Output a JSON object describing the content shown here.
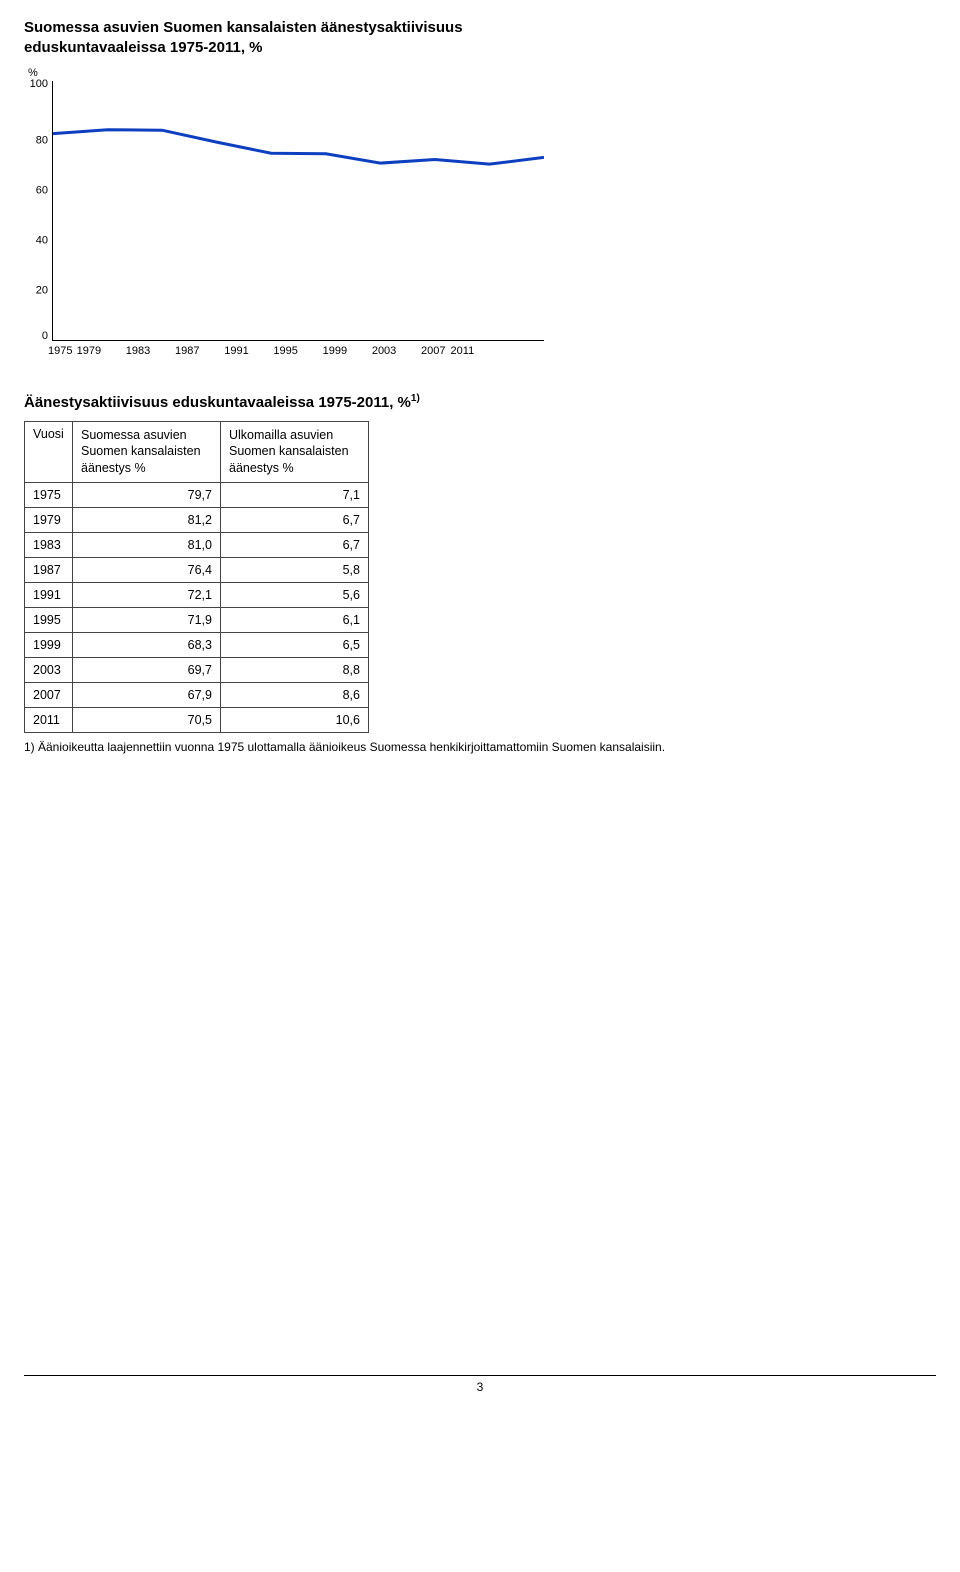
{
  "chart": {
    "title": "Suomessa asuvien Suomen kansalaisten äänestysaktiivisuus eduskuntavaaleissa 1975-2011, %",
    "y_label": "%",
    "y_ticks": [
      100,
      80,
      60,
      40,
      20,
      0
    ],
    "x_ticks": [
      1975,
      1979,
      1983,
      1987,
      1991,
      1995,
      1999,
      2003,
      2007,
      2011
    ],
    "ylim": [
      0,
      100
    ],
    "series_color": "#0d3fbf",
    "line_width": 3,
    "background": "#ffffff",
    "points": [
      {
        "x": 1975,
        "y": 79.7
      },
      {
        "x": 1979,
        "y": 81.2
      },
      {
        "x": 1983,
        "y": 81.0
      },
      {
        "x": 1987,
        "y": 76.4
      },
      {
        "x": 1991,
        "y": 72.1
      },
      {
        "x": 1995,
        "y": 71.9
      },
      {
        "x": 1999,
        "y": 68.3
      },
      {
        "x": 2003,
        "y": 69.7
      },
      {
        "x": 2007,
        "y": 67.9
      },
      {
        "x": 2011,
        "y": 70.5
      }
    ]
  },
  "table": {
    "title_prefix": "Äänestysaktiivisuus eduskuntavaaleissa 1975-2011, %",
    "title_sup": "1)",
    "columns": {
      "c1": "Vuosi",
      "c2": "Suomessa asuvien Suomen kansalaisten äänestys %",
      "c3": "Ulkomailla asuvien Suomen kansalaisten äänestys %"
    },
    "rows": [
      [
        "1975",
        "79,7",
        "7,1"
      ],
      [
        "1979",
        "81,2",
        "6,7"
      ],
      [
        "1983",
        "81,0",
        "6,7"
      ],
      [
        "1987",
        "76,4",
        "5,8"
      ],
      [
        "1991",
        "72,1",
        "5,6"
      ],
      [
        "1995",
        "71,9",
        "6,1"
      ],
      [
        "1999",
        "68,3",
        "6,5"
      ],
      [
        "2003",
        "69,7",
        "8,8"
      ],
      [
        "2007",
        "67,9",
        "8,6"
      ],
      [
        "2011",
        "70,5",
        "10,6"
      ]
    ]
  },
  "footnote": "1) Äänioikeutta laajennettiin vuonna 1975 ulottamalla äänioikeus Suomessa henkikirjoittamattomiin Suomen kansalaisiin.",
  "page_number": "3"
}
